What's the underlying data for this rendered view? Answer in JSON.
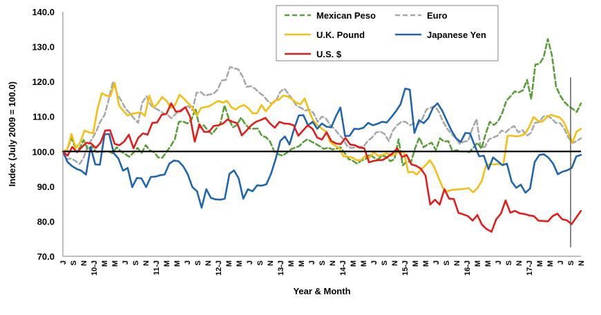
{
  "chart_data": {
    "type": "line",
    "title": "",
    "xlabel": "Year & Month",
    "ylabel": "Index (July 2009 = 100.0)",
    "ylim": [
      70,
      140
    ],
    "yticks": [
      "70.0",
      "80.0",
      "90.0",
      "100.0",
      "110.0",
      "120.0",
      "130.0",
      "140.0"
    ],
    "baseline": 100,
    "grid": false,
    "legend_position": "top-right",
    "x_tick_labels": [
      "J",
      "S",
      "N",
      "10-J",
      "M",
      "M",
      "J",
      "S",
      "N",
      "11-J",
      "M",
      "M",
      "J",
      "S",
      "N",
      "12-J",
      "M",
      "M",
      "J",
      "S",
      "N",
      "13-J",
      "M",
      "M",
      "J",
      "S",
      "N",
      "14-J",
      "M",
      "M",
      "J",
      "S",
      "N",
      "15-J",
      "M",
      "M",
      "J",
      "S",
      "N",
      "16-J",
      "M",
      "M",
      "J",
      "S",
      "N",
      "17-J",
      "M",
      "M",
      "J",
      "S",
      "N"
    ],
    "vertical_markers": [
      49,
      69
    ],
    "series": [
      {
        "name": "Mexican Peso",
        "color": "#5a9e3a",
        "dash": "dashed",
        "values": [
          100,
          100.5,
          103.8,
          101.2,
          100.8,
          103.3,
          100.6,
          101.5,
          99.9,
          99.8,
          100,
          100,
          99.5,
          101.2,
          100,
          99.3,
          98.5,
          99.6,
          101,
          99.6,
          101.8,
          100.3,
          99.8,
          98.3,
          98.2,
          99.9,
          101.5,
          103.5,
          108.5,
          108.6,
          108,
          109,
          112.3,
          106.8,
          107.5,
          106,
          105,
          106.5,
          108,
          113.2,
          109.5,
          106.9,
          107.6,
          109.7,
          107.8,
          106.6,
          106.5,
          106.6,
          104.5,
          104.1,
          102.8,
          100,
          99.2,
          98.8,
          99.6,
          100.6,
          101.1,
          101.5,
          102.7,
          103.5,
          102.8,
          102.2,
          101.5,
          100.7,
          101.1,
          100.6,
          100.8,
          101.2,
          99.5,
          97.8,
          97.3,
          96.5,
          97.4,
          97.8,
          99.2,
          98.3,
          97.7,
          98.8,
          98.5,
          97.2,
          97.8,
          103.5,
          96,
          97.2,
          97,
          101,
          104,
          101.2,
          102,
          102.5,
          100.4,
          103.8,
          102.8,
          103,
          100,
          100.4,
          100,
          100,
          99.8,
          101,
          102.5,
          100.8,
          105,
          108.5,
          107.6,
          108.6,
          111,
          114.5,
          115.8,
          117.2,
          116.9,
          117.5,
          120.5,
          115,
          124.9,
          125.1,
          127,
          132.2,
          127.5,
          118.5,
          116,
          114.2,
          113,
          112.2,
          111.3,
          113.8
        ]
      },
      {
        "name": "Euro",
        "color": "#a8a8a8",
        "dash": "dashed",
        "values": [
          100,
          97.8,
          98,
          97.3,
          96.4,
          98.3,
          101.8,
          103.6,
          105.8,
          108.6,
          110.5,
          115,
          120,
          116.5,
          114.5,
          112.3,
          111,
          109.5,
          108.2,
          114,
          115.8,
          113.3,
          112.4,
          111.8,
          111,
          110.5,
          109.5,
          110.8,
          111.8,
          112.4,
          113,
          111.8,
          116.8,
          117,
          116,
          116.3,
          116.5,
          117.6,
          120.3,
          120.5,
          124.2,
          123.8,
          123.5,
          121.5,
          118.5,
          118.7,
          118,
          116.8,
          116,
          114.5,
          113.6,
          114.5,
          117,
          118,
          116.5,
          114.7,
          113,
          112.5,
          111.7,
          112,
          111,
          108.5,
          110,
          109.4,
          107.5,
          106.5,
          105,
          103.7,
          101.6,
          101,
          101.2,
          101.3,
          101.5,
          103,
          104,
          105.5,
          105.7,
          105,
          103,
          106,
          107.5,
          108.5,
          108.5,
          107.5,
          108,
          107.7,
          109.3,
          112,
          112.5,
          113,
          111.3,
          108.5,
          106.5,
          105,
          103.9,
          102.2,
          102.8,
          103,
          106.5,
          109.3,
          101.2,
          101.3,
          103.5,
          104,
          104.5,
          106,
          105.5,
          106.6,
          107.3,
          105.5,
          106.1,
          104.5,
          105.3,
          108.2,
          108.4,
          110,
          110.2,
          109.4,
          108.2,
          108.1,
          106.5,
          104,
          102.4,
          103,
          103.8
        ]
      },
      {
        "name": "U.K. Pound",
        "color": "#f5be12",
        "dash": "solid",
        "values": [
          100,
          100.5,
          105,
          101,
          102.5,
          106,
          105.5,
          105.2,
          112,
          116.7,
          116,
          115.8,
          119.7,
          113.2,
          111.6,
          110.3,
          110.8,
          111,
          111.2,
          110.2,
          116,
          112.6,
          113.8,
          115.6,
          114.5,
          112.5,
          113.3,
          116.2,
          115.2,
          113.8,
          112.6,
          110.3,
          112.5,
          112.7,
          113,
          113.8,
          114.5,
          114,
          114.5,
          112.7,
          112,
          112.9,
          113.3,
          112.3,
          110.9,
          111,
          113.3,
          111.5,
          113,
          114.5,
          114.8,
          116,
          115.8,
          115,
          114,
          113.5,
          115.2,
          111.7,
          108.8,
          107.5,
          106.5,
          105.7,
          102.6,
          101.7,
          101,
          98.6,
          98.5,
          98.3,
          97.5,
          97.5,
          98.7,
          98.2,
          99.9,
          98.7,
          99,
          99.5,
          98.8,
          99.2,
          100.1,
          99.8,
          94,
          94.2,
          93.4,
          95,
          96,
          97.5,
          95.6,
          92.5,
          89.6,
          88.5,
          89,
          89.1,
          89.2,
          89.3,
          89.5,
          88.3,
          89.5,
          91.5,
          96,
          96.4,
          96.3,
          96.5,
          96,
          104.5,
          104.5,
          104.3,
          104.5,
          105,
          107,
          109.9,
          108.8,
          108.5,
          109.7,
          110.5,
          110.1,
          109.8,
          108.5,
          105.6,
          102.5,
          105.7,
          106.5
        ]
      },
      {
        "name": "Japanese Yen",
        "color": "#1f65ad",
        "dash": "solid",
        "values": [
          100,
          97,
          95.8,
          95,
          94.5,
          93.4,
          101.3,
          96.3,
          96.2,
          104.9,
          105,
          99.5,
          98,
          94.5,
          95.3,
          89.8,
          92.4,
          92.3,
          89.8,
          92.7,
          92.8,
          93.2,
          93.4,
          96.5,
          97.4,
          97.2,
          95.8,
          93.5,
          89.8,
          88.6,
          83.9,
          89.2,
          86.7,
          86.3,
          86.2,
          86.5,
          93.6,
          94.6,
          92.3,
          86.5,
          89.2,
          88.6,
          90.3,
          90.2,
          90.6,
          93.6,
          97.8,
          103,
          104.3,
          102,
          106.5,
          110.3,
          110.4,
          107.5,
          108.5,
          106.5,
          108,
          107.1,
          106.9,
          110,
          112.6,
          104.4,
          104.5,
          106.5,
          106.4,
          106.8,
          108.2,
          107.5,
          107.9,
          108.5,
          108.3,
          109.8,
          111.5,
          113.5,
          118,
          117.7,
          105.3,
          109,
          108.1,
          109.5,
          112.5,
          113.8,
          111.7,
          108.8,
          106,
          103.8,
          102.7,
          105.3,
          105.2,
          101.8,
          98.6,
          98.8,
          94.9,
          98.3,
          97.2,
          96.1,
          96.5,
          91.4,
          89.6,
          90.5,
          88.2,
          89.4,
          97,
          99,
          99.2,
          98.2,
          96.5,
          93.5,
          94.2,
          94.6,
          95.3,
          98.6,
          99
        ]
      },
      {
        "name": "U.S. $",
        "color": "#e31b1b",
        "dash": "solid",
        "values": [
          100,
          98.8,
          101.3,
          99.8,
          101.2,
          102.5,
          102.3,
          101,
          102.5,
          106,
          106.1,
          102.2,
          101.8,
          102.8,
          104.8,
          100.9,
          103.9,
          105.2,
          104.8,
          108.2,
          108.3,
          110.5,
          110.8,
          113.8,
          111.4,
          111.5,
          112.7,
          110,
          102.8,
          107.8,
          105.6,
          105.6,
          107.3,
          107.5,
          108,
          109.2,
          108.5,
          108.1,
          104.6,
          106,
          107.5,
          108.5,
          109,
          109.6,
          108,
          106.8,
          108.5,
          108,
          107.9,
          107.5,
          104.5,
          106,
          107.5,
          106.5,
          104,
          103.4,
          105.5,
          103,
          102.3,
          102.1,
          103.9,
          102,
          101.8,
          101.1,
          100.9,
          96.9,
          97.3,
          97.5,
          97.6,
          98.5,
          99.5,
          100.9,
          98.4,
          99,
          96.3,
          95.9,
          95.1,
          93.1,
          84.8,
          86.2,
          84.8,
          89.2,
          86.5,
          86.4,
          82.4,
          82,
          81.5,
          80.2,
          81.8,
          79,
          77.8,
          77,
          80.6,
          82.2,
          86,
          82.5,
          83,
          82.3,
          82.1,
          81.7,
          81.5,
          80.2,
          80.1,
          80,
          81.5,
          82.2,
          80.6,
          80.3,
          79.2,
          81.1,
          83
        ]
      }
    ]
  }
}
